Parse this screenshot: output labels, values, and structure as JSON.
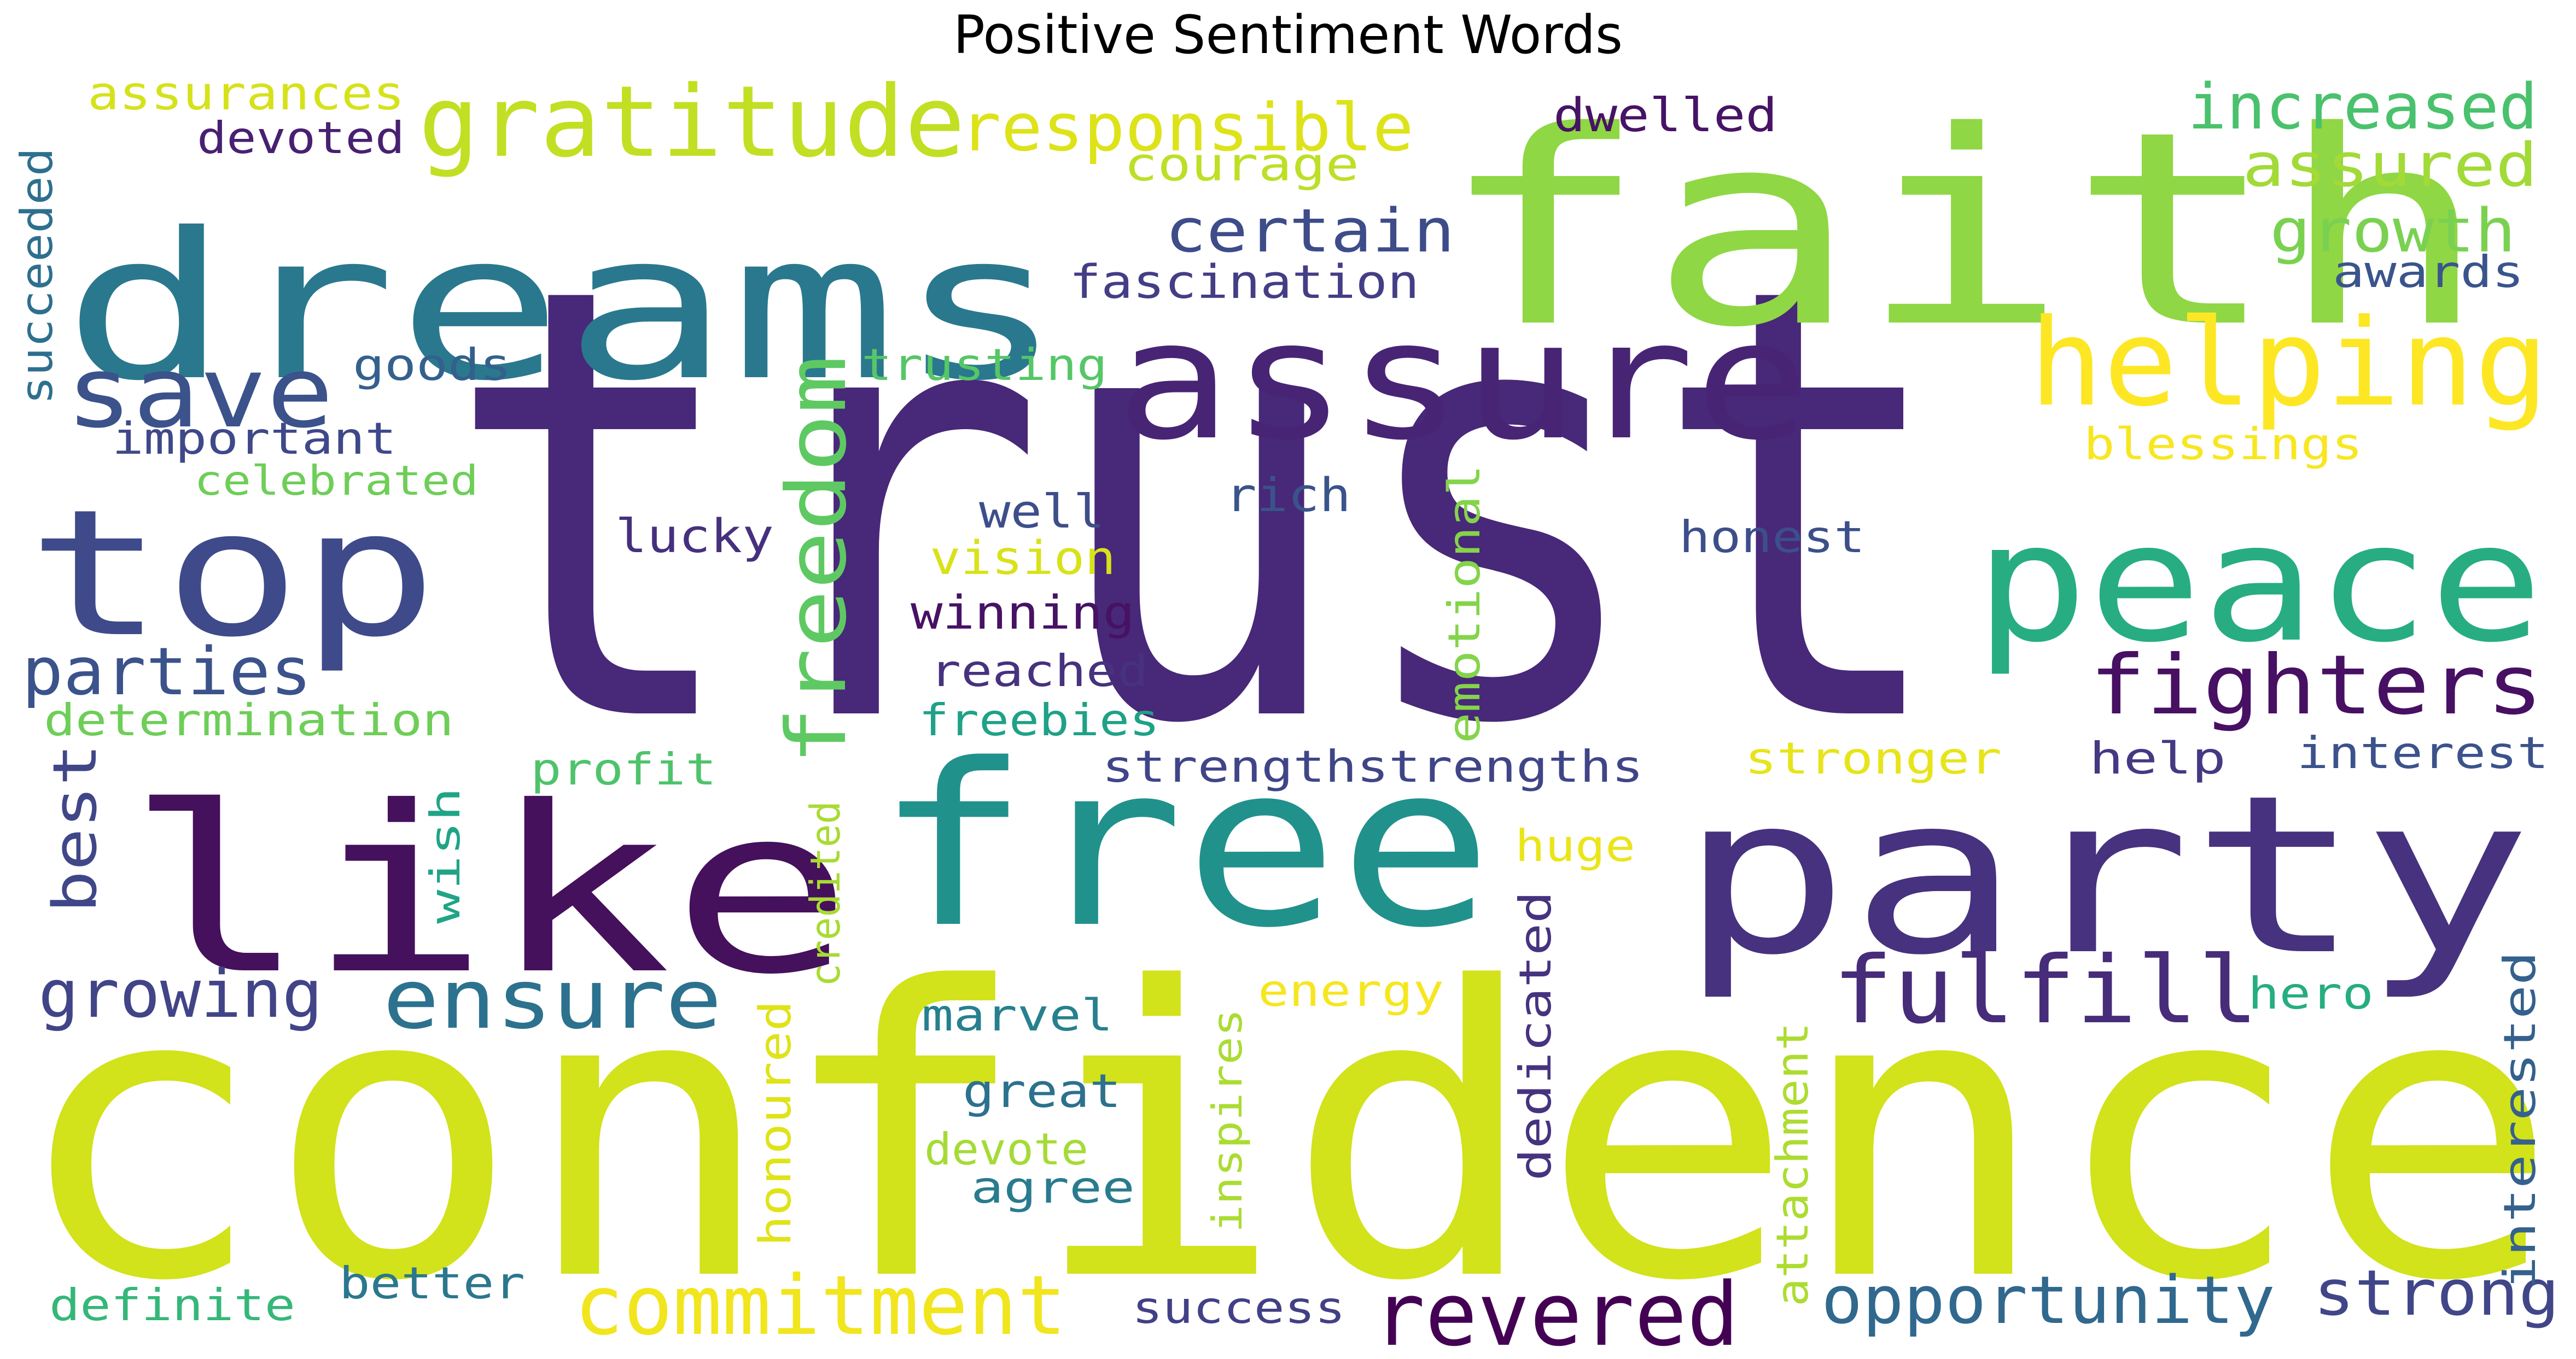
{
  "title": "Positive Sentiment Words",
  "palette": {
    "dark_purple": "#45105c",
    "purple": "#482878",
    "indigo": "#3e4a89",
    "blue": "#31688e",
    "teal": "#26828e",
    "green_teal": "#1f9e89",
    "green": "#35b779",
    "light_green": "#6ece58",
    "lime": "#b5de2b",
    "yellow_green": "#d2e21b",
    "yellow": "#fde725"
  },
  "words": [
    {
      "text": "trust",
      "color": "#482878"
    },
    {
      "text": "confidence",
      "color": "#d2e21b"
    },
    {
      "text": "faith",
      "color": "#8fd744"
    },
    {
      "text": "dreams",
      "color": "#2a788e"
    },
    {
      "text": "like",
      "color": "#45105c"
    },
    {
      "text": "free",
      "color": "#21918c"
    },
    {
      "text": "party",
      "color": "#46327e"
    },
    {
      "text": "assure",
      "color": "#482475"
    },
    {
      "text": "peace",
      "color": "#27ad81"
    },
    {
      "text": "top",
      "color": "#3e4a89"
    },
    {
      "text": "helping",
      "color": "#fde725"
    },
    {
      "text": "gratitude",
      "color": "#c2df23"
    },
    {
      "text": "fighters",
      "color": "#471063"
    },
    {
      "text": "freedom",
      "color": "#5ec962"
    },
    {
      "text": "save",
      "color": "#3b528b"
    },
    {
      "text": "fulfill",
      "color": "#472c7a"
    },
    {
      "text": "ensure",
      "color": "#2c728e"
    },
    {
      "text": "commitment",
      "color": "#f1e51d"
    },
    {
      "text": "revered",
      "color": "#440154"
    },
    {
      "text": "opportunity",
      "color": "#31688e"
    },
    {
      "text": "responsible",
      "color": "#dde318"
    },
    {
      "text": "increased",
      "color": "#4ac16d"
    },
    {
      "text": "assured",
      "color": "#a2da37"
    },
    {
      "text": "growth",
      "color": "#7ad151"
    },
    {
      "text": "certain",
      "color": "#3e4c8a"
    },
    {
      "text": "parties",
      "color": "#3b528b"
    },
    {
      "text": "growing",
      "color": "#414487"
    },
    {
      "text": "strong",
      "color": "#404688"
    },
    {
      "text": "best",
      "color": "#3f4788"
    },
    {
      "text": "assurances",
      "color": "#d5e21a"
    },
    {
      "text": "devoted",
      "color": "#482071"
    },
    {
      "text": "dwelled",
      "color": "#471365"
    },
    {
      "text": "courage",
      "color": "#bddf26"
    },
    {
      "text": "fascination",
      "color": "#433e85"
    },
    {
      "text": "awards",
      "color": "#3a548c"
    },
    {
      "text": "succeeded",
      "color": "#2e6f8e"
    },
    {
      "text": "goods",
      "color": "#34608d"
    },
    {
      "text": "trusting",
      "color": "#56c667"
    },
    {
      "text": "important",
      "color": "#3f4889"
    },
    {
      "text": "blessings",
      "color": "#f8e621"
    },
    {
      "text": "celebrated",
      "color": "#6ece58"
    },
    {
      "text": "well",
      "color": "#3d4e8a"
    },
    {
      "text": "rich",
      "color": "#3a538b"
    },
    {
      "text": "lucky",
      "color": "#46307e"
    },
    {
      "text": "vision",
      "color": "#d8e219"
    },
    {
      "text": "honest",
      "color": "#3c4f8a"
    },
    {
      "text": "winning",
      "color": "#471164"
    },
    {
      "text": "emotional",
      "color": "#84d44b"
    },
    {
      "text": "reached",
      "color": "#46327e"
    },
    {
      "text": "determination",
      "color": "#6ece58"
    },
    {
      "text": "freebies",
      "color": "#1fa187"
    },
    {
      "text": "strengthstrengths",
      "color": "#404588"
    },
    {
      "text": "stronger",
      "color": "#e7e419"
    },
    {
      "text": "help",
      "color": "#443983"
    },
    {
      "text": "interest",
      "color": "#3b528b"
    },
    {
      "text": "profit",
      "color": "#4ec36b"
    },
    {
      "text": "huge",
      "color": "#eae51a"
    },
    {
      "text": "wish",
      "color": "#20a486"
    },
    {
      "text": "credited",
      "color": "#a8db34"
    },
    {
      "text": "energy",
      "color": "#f6e620"
    },
    {
      "text": "hero",
      "color": "#26ad81"
    },
    {
      "text": "marvel",
      "color": "#27808e"
    },
    {
      "text": "dedicated",
      "color": "#46337f"
    },
    {
      "text": "great",
      "color": "#2c718e"
    },
    {
      "text": "honoured",
      "color": "#dfe318"
    },
    {
      "text": "devote",
      "color": "#a5db36"
    },
    {
      "text": "agree",
      "color": "#297b8e"
    },
    {
      "text": "inspires",
      "color": "#aadc32"
    },
    {
      "text": "attachment",
      "color": "#addc30"
    },
    {
      "text": "interested",
      "color": "#34618d"
    },
    {
      "text": "definite",
      "color": "#35b779"
    },
    {
      "text": "better",
      "color": "#2a778e"
    },
    {
      "text": "success",
      "color": "#424086"
    }
  ]
}
